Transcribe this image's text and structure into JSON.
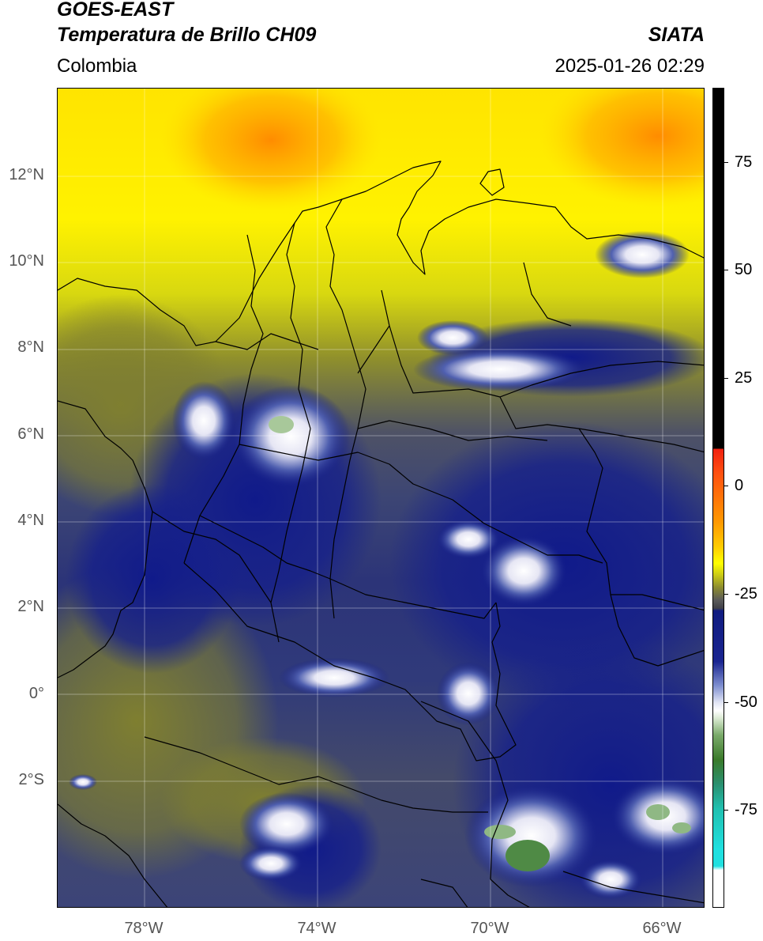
{
  "header": {
    "satellite": "GOES-EAST",
    "product": "Temperatura de Brillo CH09",
    "brand": "SIATA",
    "region": "Colombia",
    "datetime": "2025-01-26 02:29"
  },
  "map": {
    "lat_labels": [
      "12°N",
      "10°N",
      "8°N",
      "6°N",
      "4°N",
      "2°N",
      "0°",
      "2°S"
    ],
    "lon_labels": [
      "78°W",
      "74°W",
      "70°W",
      "66°W"
    ]
  },
  "colorbar": {
    "labels": [
      "75",
      "50",
      "25",
      "0",
      "-25",
      "-50",
      "-75"
    ],
    "colors": {
      "black": "#000000",
      "red": "#f02010",
      "orange": "#ff9900",
      "yellow": "#ffff00",
      "olive": "#8a8a30",
      "navy": "#101c80",
      "white": "#ffffff",
      "green": "#3a7a2a",
      "cyan": "#20e0e0"
    }
  }
}
